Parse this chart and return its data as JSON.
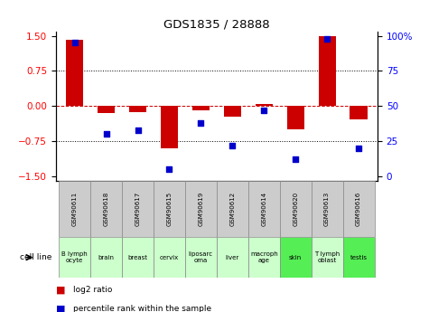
{
  "title": "GDS1835 / 28888",
  "samples": [
    "GSM90611",
    "GSM90618",
    "GSM90617",
    "GSM90615",
    "GSM90619",
    "GSM90612",
    "GSM90614",
    "GSM90620",
    "GSM90613",
    "GSM90616"
  ],
  "cell_lines": [
    "B lymph\nocyte",
    "brain",
    "breast",
    "cervix",
    "liposarc\noma",
    "liver",
    "macroph\nage",
    "skin",
    "T lymph\noblast",
    "testis"
  ],
  "log2_ratio": [
    1.42,
    -0.15,
    -0.13,
    -0.9,
    -0.1,
    -0.22,
    0.05,
    -0.5,
    1.5,
    -0.28
  ],
  "percentile_rank": [
    95,
    30,
    33,
    5,
    38,
    22,
    47,
    12,
    98,
    20
  ],
  "bar_color": "#cc0000",
  "dot_color": "#0000cc",
  "ylim": [
    -1.6,
    1.6
  ],
  "yticks_left": [
    -1.5,
    -0.75,
    0,
    0.75,
    1.5
  ],
  "yticks_right": [
    0,
    25,
    50,
    75,
    100
  ],
  "hline_color": "#cc0000",
  "grid_color": "#000000",
  "bar_width": 0.55,
  "sample_box_color": "#cccccc",
  "cell_line_colors": [
    "#ccffcc",
    "#ccffcc",
    "#ccffcc",
    "#ccffcc",
    "#ccffcc",
    "#ccffcc",
    "#ccffcc",
    "#00ee00",
    "#ccffcc",
    "#00ee00"
  ],
  "legend_red": "log2 ratio",
  "legend_blue": "percentile rank within the sample",
  "cell_line_label": "cell line"
}
